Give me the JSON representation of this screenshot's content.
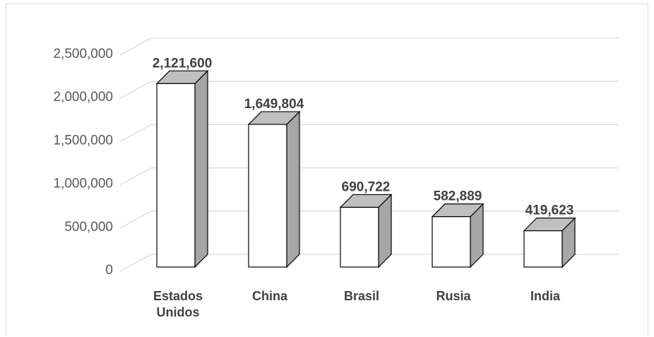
{
  "chart_data": {
    "type": "bar",
    "style": "3d-column",
    "categories": [
      [
        "Estados",
        "Unidos"
      ],
      [
        "China"
      ],
      [
        "Brasil"
      ],
      [
        "Rusia"
      ],
      [
        "India"
      ]
    ],
    "values": [
      2121600,
      1649804,
      690722,
      582889,
      419623
    ],
    "data_labels": [
      "2,121,600",
      "1,649,804",
      "690,722",
      "582,889",
      "419,623"
    ],
    "yticks": [
      "0",
      "500,000",
      "1,000,000",
      "1,500,000",
      "2,000,000",
      "2,500,000"
    ],
    "ylim": [
      0,
      2500000
    ],
    "grid": true,
    "colors": {
      "front": "#ffffff",
      "side": "#a6a6a6",
      "top": "#bfbfbf",
      "edge": "#000000",
      "grid": "#d9d9d9"
    }
  }
}
